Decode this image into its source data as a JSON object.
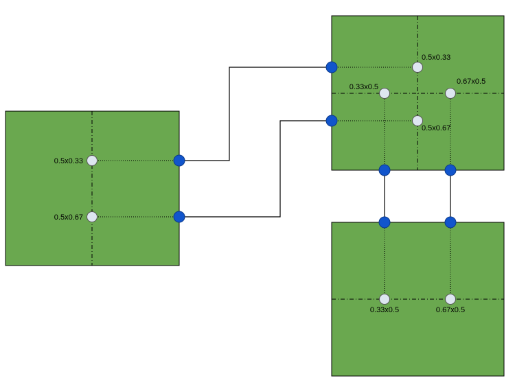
{
  "colors": {
    "box_fill": "#6aa84f",
    "box_stroke": "#000000",
    "port_fill": "#1155cc",
    "anchor_fill": "#dde6f0",
    "line": "#000000"
  },
  "labels": {
    "left_upper": "0.5x0.33",
    "left_lower": "0.5x0.67",
    "right_top_upper": "0.5x0.33",
    "right_top_lower": "0.5x0.67",
    "right_top_left_mid": "0.33x0.5",
    "right_top_right_mid": "0.67x0.5",
    "bottom_left_mid": "0.33x0.5",
    "bottom_right_mid": "0.67x0.5"
  }
}
